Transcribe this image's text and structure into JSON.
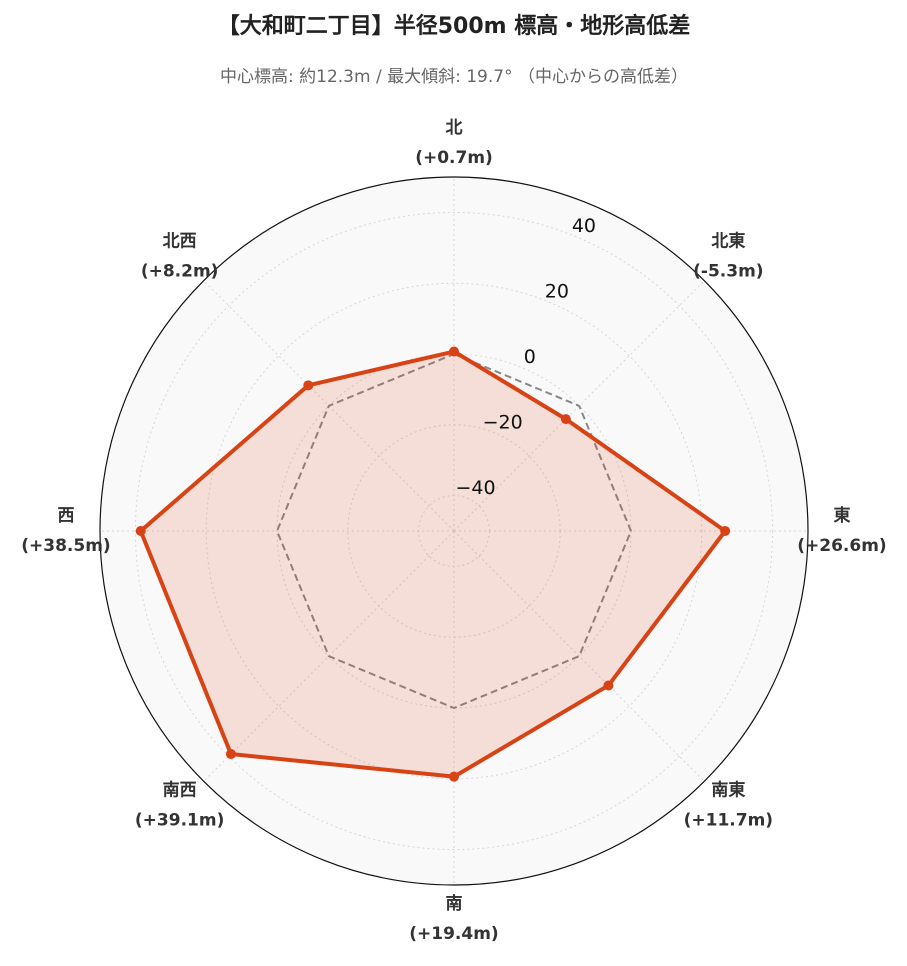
{
  "chart_data": {
    "type": "radar",
    "title": "【大和町二丁目】半径500m 標高・地形高低差",
    "subtitle": "中心標高: 約12.3m / 最大傾斜: 19.7° （中心からの高低差）",
    "categories": [
      "北",
      "北東",
      "東",
      "南東",
      "南",
      "南西",
      "西",
      "北西"
    ],
    "series": [
      {
        "color": "#d84315",
        "values": [
          0.7,
          -5.3,
          26.6,
          11.7,
          19.4,
          39.1,
          38.5,
          8.2
        ],
        "value_labels": [
          "(+0.7m)",
          "(-5.3m)",
          "(+26.6m)",
          "(+11.7m)",
          "(+19.4m)",
          "(+39.1m)",
          "(+38.5m)",
          "(+8.2m)"
        ]
      }
    ],
    "reference_value": 0,
    "ylim": [
      -50,
      50
    ],
    "yticks": [
      {
        "value": -40,
        "label": "−40"
      },
      {
        "value": -20,
        "label": "−20"
      },
      0,
      20,
      40
    ],
    "grid": true
  }
}
